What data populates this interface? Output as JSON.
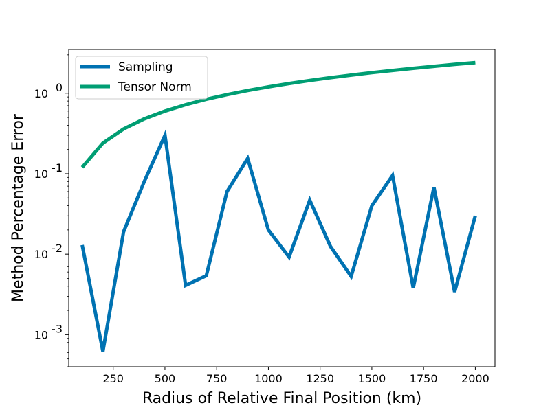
{
  "chart_data": {
    "type": "line",
    "title": "",
    "xlabel": "Radius of Relative Final Position (km)",
    "ylabel": "Method Percentage Error",
    "xscale": "linear",
    "yscale": "log",
    "xlim": [
      35,
      2095
    ],
    "ylim": [
      0.0004,
      3.5
    ],
    "xticks": [
      250,
      500,
      750,
      1000,
      1250,
      1500,
      1750,
      2000
    ],
    "xtick_labels": [
      "250",
      "500",
      "750",
      "1000",
      "1250",
      "1500",
      "1750",
      "2000"
    ],
    "yticks": [
      0.001,
      0.01,
      0.1,
      1
    ],
    "ytick_labels": [
      "10^-3",
      "10^-2",
      "10^-1",
      "10^0"
    ],
    "grid": false,
    "legend_position": "top-left",
    "x": [
      100,
      200,
      300,
      400,
      500,
      600,
      700,
      800,
      900,
      1000,
      1100,
      1200,
      1300,
      1400,
      1500,
      1600,
      1700,
      1800,
      1900,
      2000
    ],
    "series": [
      {
        "name": "Sampling",
        "color": "#0072b2",
        "values": [
          0.013,
          0.00062,
          0.019,
          0.08,
          0.3,
          0.0041,
          0.0054,
          0.06,
          0.155,
          0.02,
          0.0092,
          0.047,
          0.0125,
          0.0053,
          0.04,
          0.095,
          0.0038,
          0.068,
          0.0034,
          0.03
        ]
      },
      {
        "name": "Tensor Norm",
        "color": "#009e73",
        "values": [
          0.12,
          0.24,
          0.36,
          0.48,
          0.6,
          0.72,
          0.84,
          0.96,
          1.08,
          1.2,
          1.32,
          1.44,
          1.56,
          1.68,
          1.8,
          1.92,
          2.04,
          2.16,
          2.28,
          2.4
        ]
      }
    ]
  }
}
